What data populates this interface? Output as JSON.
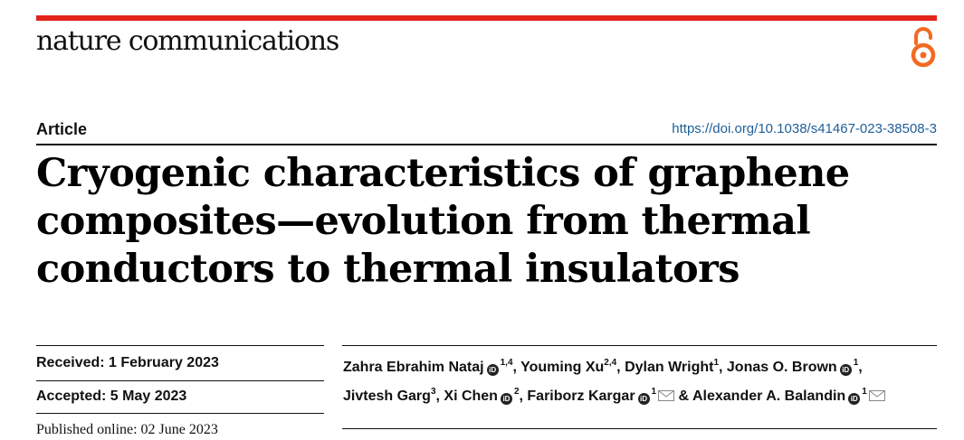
{
  "header": {
    "journal_name": "nature communications",
    "brand_color": "#e2231a",
    "open_access_icon": "open-access-icon"
  },
  "article": {
    "type_label": "Article",
    "doi": "https://doi.org/10.1038/s41467-023-38508-3",
    "title": "Cryogenic characteristics of graphene composites—evolution from thermal conductors to thermal insulators"
  },
  "dates": {
    "received": "Received: 1 February 2023",
    "accepted": "Accepted: 5 May 2023",
    "published": "Published online: 02 June 2023"
  },
  "authors": [
    {
      "name": "Zahra Ebrahim Nataj",
      "orcid": true,
      "affiliations": "1,4",
      "sep": ", ",
      "email": false
    },
    {
      "name": "Youming Xu",
      "orcid": false,
      "affiliations": "2,4",
      "sep": ", ",
      "email": false
    },
    {
      "name": "Dylan Wright",
      "orcid": false,
      "affiliations": "1",
      "sep": ", ",
      "email": false
    },
    {
      "name": "Jonas O. Brown",
      "orcid": true,
      "affiliations": "1",
      "sep": ",",
      "email": false
    },
    {
      "name": "Jivtesh Garg",
      "orcid": false,
      "affiliations": "3",
      "sep": ", ",
      "email": false
    },
    {
      "name": "Xi Chen",
      "orcid": true,
      "affiliations": "2",
      "sep": ", ",
      "email": false
    },
    {
      "name": "Fariborz Kargar",
      "orcid": true,
      "affiliations": "1",
      "sep": " & ",
      "email": true
    },
    {
      "name": "Alexander A. Balandin",
      "orcid": true,
      "affiliations": "1",
      "sep": "",
      "email": true
    }
  ],
  "icons": {
    "orcid": "orcid-icon",
    "email": "email-icon",
    "orcid_glyph": "iD"
  }
}
